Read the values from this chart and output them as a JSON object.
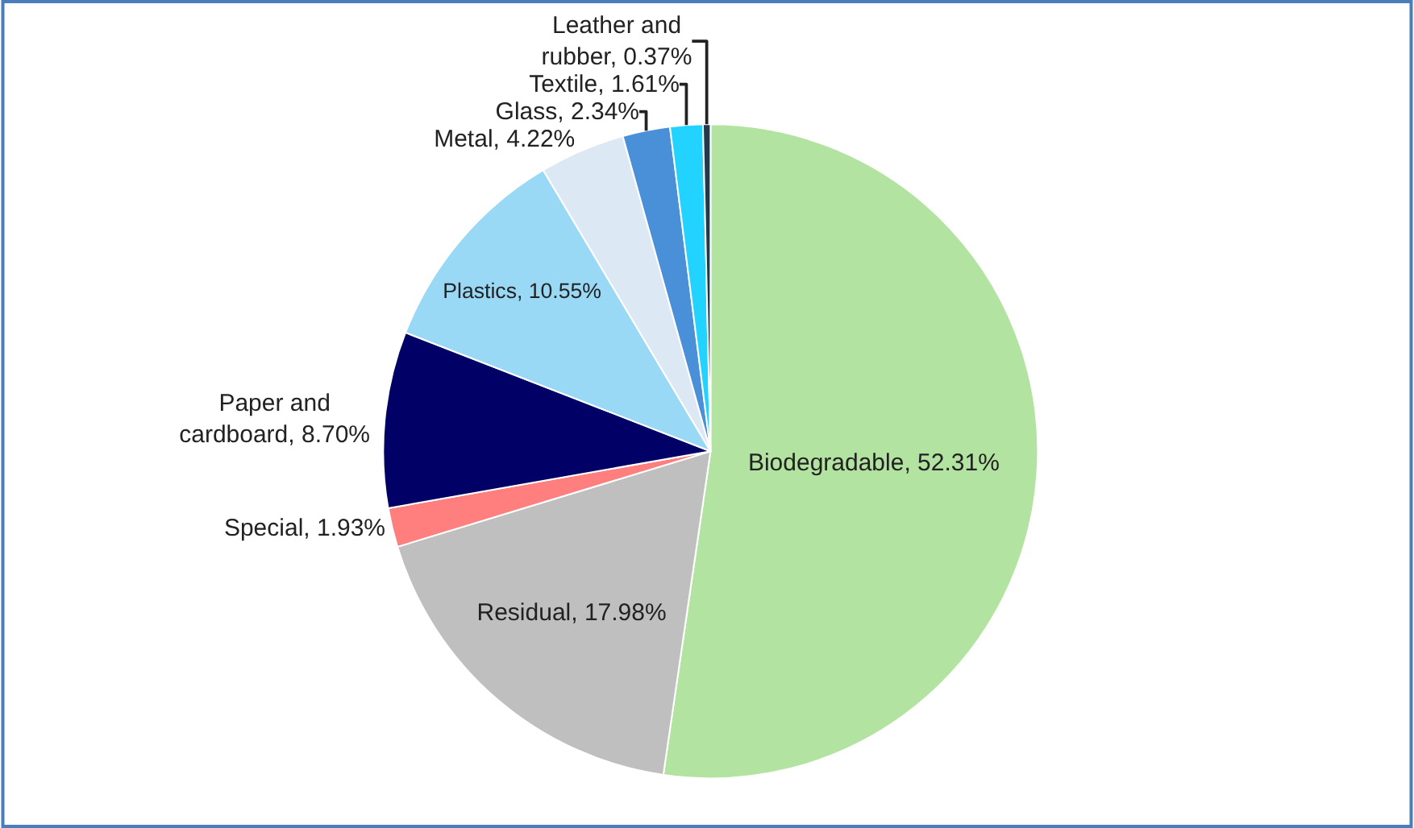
{
  "chart_data": {
    "type": "pie",
    "categories": [
      "Biodegradable",
      "Residual",
      "Special",
      "Paper and cardboard",
      "Plastics",
      "Metal",
      "Glass",
      "Textile",
      "Leather and rubber"
    ],
    "values": [
      52.31,
      17.98,
      1.93,
      8.7,
      10.55,
      4.22,
      2.34,
      1.61,
      0.37
    ],
    "value_labels": [
      "52.31%",
      "17.98%",
      "1.93%",
      "8.70%",
      "10.55%",
      "4.22%",
      "2.34%",
      "1.61%",
      "0.37%"
    ],
    "colors": [
      "#b3e3a0",
      "#bfbfbf",
      "#ff7f7f",
      "#000066",
      "#99d9f5",
      "#dce9f5",
      "#4a90d9",
      "#22d3ff",
      "#1f3a4d"
    ],
    "legend": false
  }
}
